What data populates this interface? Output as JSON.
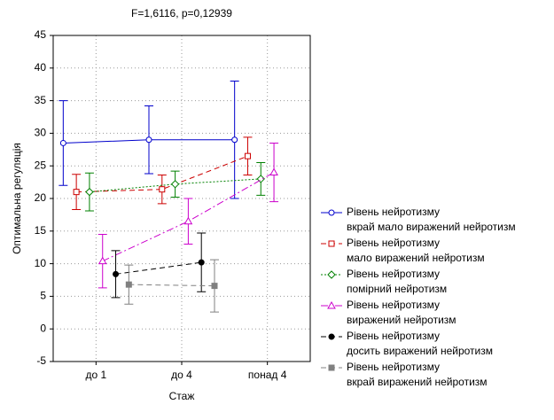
{
  "chart_data": {
    "type": "line",
    "title": "F=1,6116, p=0,12939",
    "xlabel": "Стаж",
    "ylabel": "Оптимальна регуляція",
    "categories": [
      "до 1",
      "до 4",
      "понад 4"
    ],
    "ylim": [
      -5,
      45
    ],
    "yticks": [
      -5,
      0,
      5,
      10,
      15,
      20,
      25,
      30,
      35,
      40,
      45
    ],
    "grid": true,
    "legend_prefix": "Рівень нейротизму",
    "legend": "right",
    "series": [
      {
        "name": "вкрай мало виражений нейротизм",
        "color": "#0000cc",
        "marker": "circle",
        "filled": false,
        "dash": "",
        "values": [
          28.5,
          29,
          29
        ],
        "errors": [
          6.5,
          5.2,
          9
        ]
      },
      {
        "name": "мало виражений нейротизм",
        "color": "#cc0000",
        "marker": "square",
        "filled": false,
        "dash": "6,4",
        "values": [
          21,
          21.4,
          26.5
        ],
        "errors": [
          2.7,
          2.2,
          2.9
        ]
      },
      {
        "name": "помірний нейротизм",
        "color": "#008000",
        "marker": "diamond",
        "filled": false,
        "dash": "2,2",
        "values": [
          21,
          22.2,
          23
        ],
        "errors": [
          2.9,
          2,
          2.5
        ]
      },
      {
        "name": "виражений нейротизм",
        "color": "#cc00cc",
        "marker": "triangle",
        "filled": false,
        "dash": "8,3,2,3",
        "values": [
          10.4,
          16.5,
          24
        ],
        "errors": [
          4.1,
          3.5,
          4.5
        ]
      },
      {
        "name": "досить виражений нейротизм",
        "color": "#000000",
        "marker": "circle",
        "filled": true,
        "dash": "6,4",
        "values": [
          8.4,
          10.2,
          null
        ],
        "errors": [
          3.6,
          4.5,
          null
        ]
      },
      {
        "name": "вкрай виражений нейротизм",
        "color": "#808080",
        "marker": "square",
        "filled": true,
        "dash": "6,4",
        "values": [
          6.8,
          6.6,
          null
        ],
        "errors": [
          3,
          4,
          null
        ]
      }
    ]
  }
}
